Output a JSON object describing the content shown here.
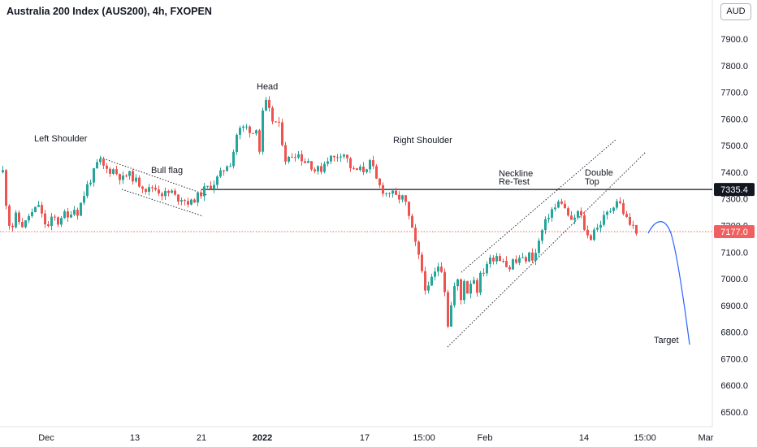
{
  "header": {
    "title": "Australia 200 Index (AUS200), 4h, FXOPEN",
    "currency": "AUD"
  },
  "colors": {
    "up": "#26a69a",
    "down": "#ef5350",
    "neckline": "#131722",
    "last_price": "#f06060",
    "projection": "#2962ff",
    "channel": "#131722"
  },
  "chart_data": {
    "type": "candlestick",
    "symbol": "AUS200",
    "timeframe": "4h",
    "ylim": [
      6400,
      8000
    ],
    "y_ticks": [
      6500,
      6600,
      6700,
      6800,
      6900,
      7000,
      7100,
      7200,
      7300,
      7400,
      7500,
      7600,
      7700,
      7800,
      7900
    ],
    "y_tick_labels": [
      "6500.0",
      "6600.0",
      "6700.0",
      "6800.0",
      "6900.0",
      "7000.0",
      "7100.0",
      "7200.0",
      "7300.0",
      "7400.0",
      "7500.0",
      "7600.0",
      "7700.0",
      "7800.0",
      "7900.0"
    ],
    "x_labels": [
      "Dec",
      "13",
      "21",
      "2022",
      "17",
      "15:00",
      "Feb",
      "14",
      "15:00",
      "Mar"
    ],
    "close_path": [
      [
        0,
        7405
      ],
      [
        3,
        7410
      ],
      [
        5,
        7395
      ],
      [
        9,
        7250
      ],
      [
        14,
        7180
      ],
      [
        20,
        7235
      ],
      [
        25,
        7210
      ],
      [
        30,
        7195
      ],
      [
        35,
        7235
      ],
      [
        42,
        7250
      ],
      [
        48,
        7280
      ],
      [
        54,
        7215
      ],
      [
        60,
        7195
      ],
      [
        66,
        7235
      ],
      [
        72,
        7210
      ],
      [
        78,
        7250
      ],
      [
        84,
        7225
      ],
      [
        90,
        7270
      ],
      [
        96,
        7250
      ],
      [
        102,
        7300
      ],
      [
        108,
        7350
      ],
      [
        114,
        7385
      ],
      [
        120,
        7430
      ],
      [
        124,
        7440
      ],
      [
        128,
        7420
      ],
      [
        134,
        7405
      ],
      [
        140,
        7410
      ],
      [
        146,
        7390
      ],
      [
        152,
        7375
      ],
      [
        158,
        7395
      ],
      [
        164,
        7380
      ],
      [
        170,
        7360
      ],
      [
        176,
        7350
      ],
      [
        182,
        7330
      ],
      [
        188,
        7345
      ],
      [
        194,
        7335
      ],
      [
        200,
        7320
      ],
      [
        206,
        7320
      ],
      [
        212,
        7325
      ],
      [
        218,
        7300
      ],
      [
        224,
        7305
      ],
      [
        230,
        7290
      ],
      [
        236,
        7285
      ],
      [
        240,
        7300
      ],
      [
        246,
        7315
      ],
      [
        252,
        7335
      ],
      [
        258,
        7345
      ],
      [
        264,
        7360
      ],
      [
        270,
        7385
      ],
      [
        276,
        7410
      ],
      [
        282,
        7440
      ],
      [
        286,
        7430
      ],
      [
        290,
        7530
      ],
      [
        294,
        7555
      ],
      [
        298,
        7565
      ],
      [
        303,
        7570
      ],
      [
        308,
        7560
      ],
      [
        313,
        7545
      ],
      [
        317,
        7580
      ],
      [
        320,
        7480
      ],
      [
        324,
        7620
      ],
      [
        327,
        7660
      ],
      [
        330,
        7655
      ],
      [
        334,
        7600
      ],
      [
        338,
        7590
      ],
      [
        342,
        7585
      ],
      [
        346,
        7560
      ],
      [
        350,
        7470
      ],
      [
        354,
        7430
      ],
      [
        358,
        7470
      ],
      [
        362,
        7460
      ],
      [
        366,
        7480
      ],
      [
        370,
        7455
      ],
      [
        374,
        7450
      ],
      [
        378,
        7430
      ],
      [
        382,
        7455
      ],
      [
        386,
        7395
      ],
      [
        390,
        7420
      ],
      [
        394,
        7400
      ],
      [
        398,
        7425
      ],
      [
        402,
        7445
      ],
      [
        406,
        7460
      ],
      [
        410,
        7450
      ],
      [
        414,
        7455
      ],
      [
        418,
        7470
      ],
      [
        422,
        7475
      ],
      [
        426,
        7465
      ],
      [
        430,
        7430
      ],
      [
        434,
        7410
      ],
      [
        438,
        7400
      ],
      [
        442,
        7415
      ],
      [
        446,
        7405
      ],
      [
        450,
        7410
      ],
      [
        455,
        7440
      ],
      [
        460,
        7410
      ],
      [
        465,
        7360
      ],
      [
        470,
        7340
      ],
      [
        475,
        7320
      ],
      [
        480,
        7325
      ],
      [
        485,
        7315
      ],
      [
        490,
        7300
      ],
      [
        495,
        7310
      ],
      [
        500,
        7280
      ],
      [
        504,
        7230
      ],
      [
        508,
        7180
      ],
      [
        512,
        7130
      ],
      [
        516,
        7080
      ],
      [
        520,
        7030
      ],
      [
        524,
        6970
      ],
      [
        528,
        6960
      ],
      [
        532,
        7000
      ],
      [
        536,
        7020
      ],
      [
        540,
        7050
      ],
      [
        544,
        7040
      ],
      [
        548,
        6960
      ],
      [
        552,
        6830
      ],
      [
        556,
        6900
      ],
      [
        560,
        6970
      ],
      [
        564,
        6990
      ],
      [
        568,
        6920
      ],
      [
        572,
        7000
      ],
      [
        576,
        6950
      ],
      [
        580,
        6990
      ],
      [
        584,
        7000
      ],
      [
        588,
        6960
      ],
      [
        592,
        7010
      ],
      [
        596,
        7030
      ],
      [
        600,
        7060
      ],
      [
        604,
        7070
      ],
      [
        608,
        7080
      ],
      [
        612,
        7090
      ],
      [
        616,
        7075
      ],
      [
        620,
        7080
      ],
      [
        624,
        7050
      ],
      [
        628,
        7040
      ],
      [
        632,
        7070
      ],
      [
        636,
        7060
      ],
      [
        640,
        7080
      ],
      [
        644,
        7070
      ],
      [
        648,
        7075
      ],
      [
        652,
        7090
      ],
      [
        656,
        7080
      ],
      [
        660,
        7095
      ],
      [
        664,
        7140
      ],
      [
        668,
        7180
      ],
      [
        672,
        7210
      ],
      [
        676,
        7240
      ],
      [
        680,
        7260
      ],
      [
        684,
        7265
      ],
      [
        688,
        7285
      ],
      [
        692,
        7290
      ],
      [
        696,
        7260
      ],
      [
        700,
        7240
      ],
      [
        704,
        7210
      ],
      [
        708,
        7230
      ],
      [
        712,
        7250
      ],
      [
        716,
        7230
      ],
      [
        720,
        7190
      ],
      [
        724,
        7160
      ],
      [
        727,
        7135
      ],
      [
        730,
        7200
      ],
      [
        734,
        7180
      ],
      [
        738,
        7200
      ],
      [
        742,
        7220
      ],
      [
        746,
        7240
      ],
      [
        750,
        7250
      ],
      [
        754,
        7270
      ],
      [
        758,
        7290
      ],
      [
        762,
        7300
      ],
      [
        766,
        7260
      ],
      [
        770,
        7240
      ],
      [
        774,
        7210
      ],
      [
        778,
        7200
      ],
      [
        782,
        7190
      ],
      [
        785,
        7177
      ]
    ],
    "last_price": 7177.0,
    "last_price_label": "7177.0",
    "neckline_price": 7335.4,
    "neckline_label": "7335.4",
    "projection_target": 6750,
    "annotations": [
      {
        "text": "Left Shoulder"
      },
      {
        "text": "Bull flag"
      },
      {
        "text": "Head"
      },
      {
        "text": "Right Shoulder"
      },
      {
        "text": "Neckline Re-Test"
      },
      {
        "text": "Double Top"
      },
      {
        "text": "Target"
      }
    ]
  }
}
